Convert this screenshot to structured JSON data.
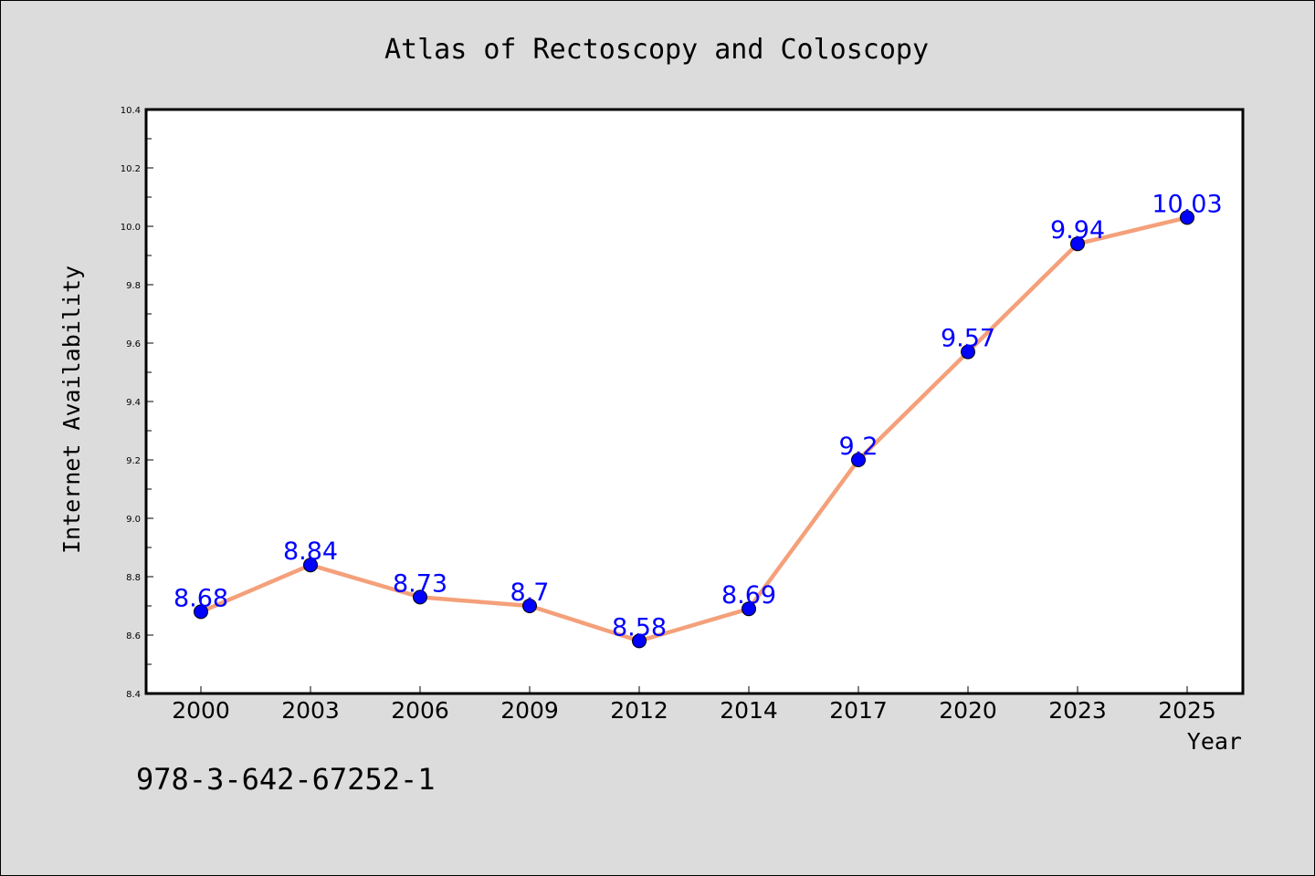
{
  "chart_data": {
    "type": "line",
    "title": "Atlas of Rectoscopy and Coloscopy",
    "xlabel": "Year",
    "ylabel": "Internet Availability",
    "categories": [
      "2000",
      "2003",
      "2006",
      "2009",
      "2012",
      "2014",
      "2017",
      "2020",
      "2023",
      "2025"
    ],
    "series": [
      {
        "values": [
          8.68,
          8.84,
          8.73,
          8.7,
          8.58,
          8.69,
          9.2,
          9.57,
          9.94,
          10.03
        ],
        "data_labels": [
          "8.68",
          "8.84",
          "8.73",
          "8.7",
          "8.58",
          "8.69",
          "9.2",
          "9.57",
          "9.94",
          "10.03"
        ],
        "line_color": "#f4a07a",
        "marker_color": "#0000ff",
        "label_color": "#0000ff"
      }
    ],
    "ylim": [
      8.4,
      10.4
    ],
    "yticks": [
      "8.4",
      "8.6",
      "8.8",
      "9.0",
      "9.2",
      "9.4",
      "9.6",
      "9.8",
      "10.0",
      "10.2",
      "10.4"
    ],
    "grid": false,
    "legend": "none",
    "background_color": "#dcdcdc",
    "plot_background_color": "#ffffff"
  },
  "annotation": {
    "text": "978-3-642-67252-1"
  }
}
